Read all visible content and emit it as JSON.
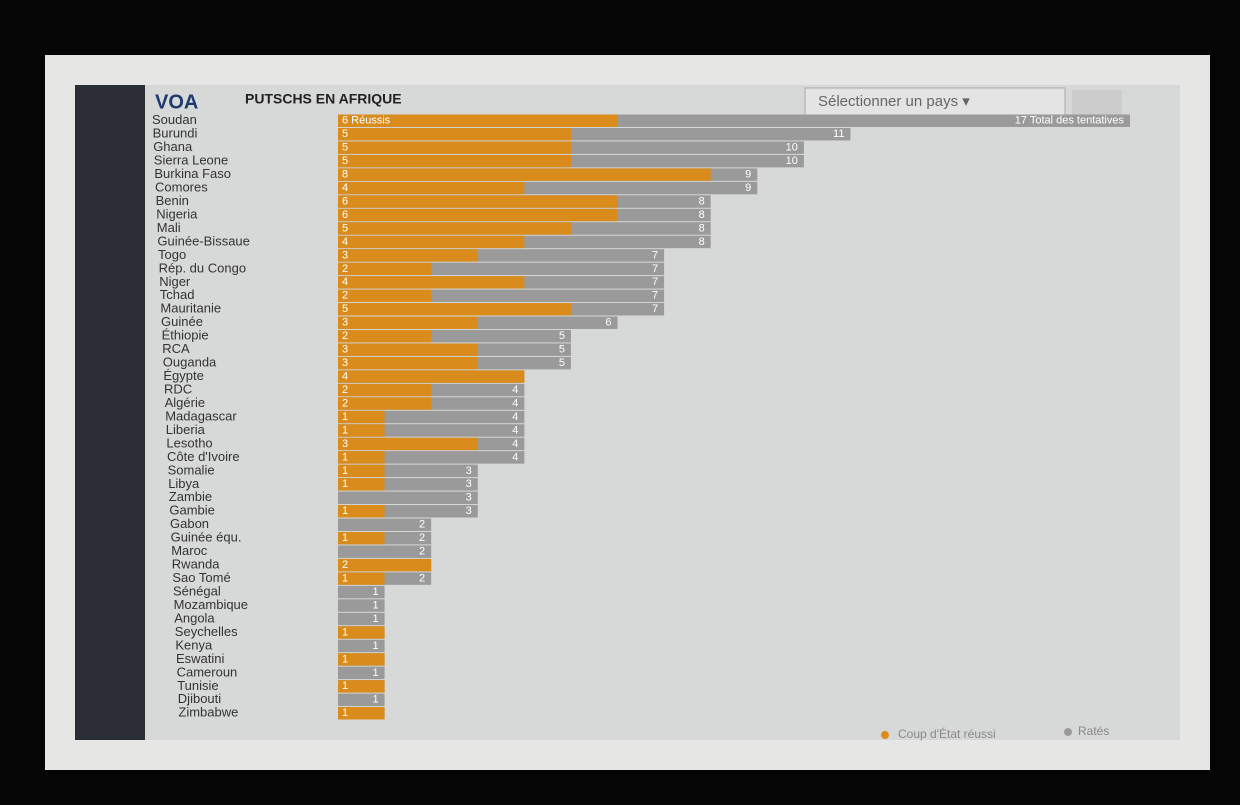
{
  "chart_data": {
    "type": "bar",
    "logo": "VOA",
    "title": "PUTSCHS EN AFRIQUE",
    "selector": "Sélectionner un pays ▾",
    "categories": [
      "Soudan",
      "Burundi",
      "Ghana",
      "Sierra Leone",
      "Burkina Faso",
      "Comores",
      "Benin",
      "Nigeria",
      "Mali",
      "Guinée-Bissaue",
      "Togo",
      "Rép. du Congo",
      "Niger",
      "Tchad",
      "Mauritanie",
      "Guinée",
      "Éthiopie",
      "RCA",
      "Ouganda",
      "Égypte",
      "RDC",
      "Algérie",
      "Madagascar",
      "Liberia",
      "Lesotho",
      "Côte d'Ivoire",
      "Somalie",
      "Libya",
      "Zambie",
      "Gambie",
      "Gabon",
      "Guinée équ.",
      "Maroc",
      "Rwanda",
      "Sao Tomé",
      "Sénégal",
      "Mozambique",
      "Angola",
      "Seychelles",
      "Kenya",
      "Eswatini",
      "Cameroun",
      "Tunisie",
      "Djibouti",
      "Zimbabwe"
    ],
    "series": [
      {
        "name": "Ratés",
        "color": "#9a9a9a",
        "values": [
          17,
          11,
          10,
          10,
          9,
          9,
          8,
          8,
          8,
          8,
          7,
          7,
          7,
          7,
          7,
          6,
          5,
          5,
          5,
          4,
          4,
          4,
          4,
          4,
          4,
          4,
          3,
          3,
          3,
          3,
          2,
          2,
          2,
          2,
          2,
          1,
          1,
          1,
          1,
          1,
          1,
          1,
          1,
          1,
          1
        ],
        "value_labels": [
          "17 Total des tentatives",
          "11",
          "10",
          "10",
          "9",
          "9",
          "8",
          "8",
          "8",
          "8",
          "7",
          "7",
          "7",
          "7",
          "7",
          "6",
          "5",
          "5",
          "5",
          "4",
          "4",
          "4",
          "4",
          "4",
          "4",
          "4",
          "3",
          "3",
          "3",
          "3",
          "2",
          "2",
          "2",
          "2",
          "2",
          "1",
          "1",
          "1",
          "1",
          "1",
          "1",
          "1",
          "1",
          "1",
          "1"
        ]
      },
      {
        "name": "Coup d'État réussi",
        "color": "#d98b1c",
        "values": [
          6,
          5,
          5,
          5,
          8,
          4,
          6,
          6,
          5,
          4,
          3,
          2,
          4,
          2,
          5,
          3,
          2,
          3,
          3,
          4,
          2,
          2,
          1,
          1,
          3,
          1,
          1,
          1,
          0,
          1,
          0,
          1,
          0,
          2,
          1,
          0,
          0,
          0,
          1,
          0,
          1,
          0,
          1,
          0,
          1
        ],
        "value_labels": [
          "6 Réussis",
          "5",
          "5",
          "5",
          "8",
          "4",
          "6",
          "6",
          "5",
          "4",
          "3",
          "2",
          "4",
          "2",
          "5",
          "3",
          "2",
          "3",
          "3",
          "4",
          "2",
          "2",
          "1",
          "1",
          "3",
          "1",
          "1",
          "1",
          null,
          "1",
          null,
          "1",
          null,
          "2",
          "1",
          null,
          null,
          null,
          "1",
          null,
          "1",
          null,
          "1",
          null,
          "1"
        ]
      }
    ],
    "xlim": [
      0,
      17
    ]
  }
}
